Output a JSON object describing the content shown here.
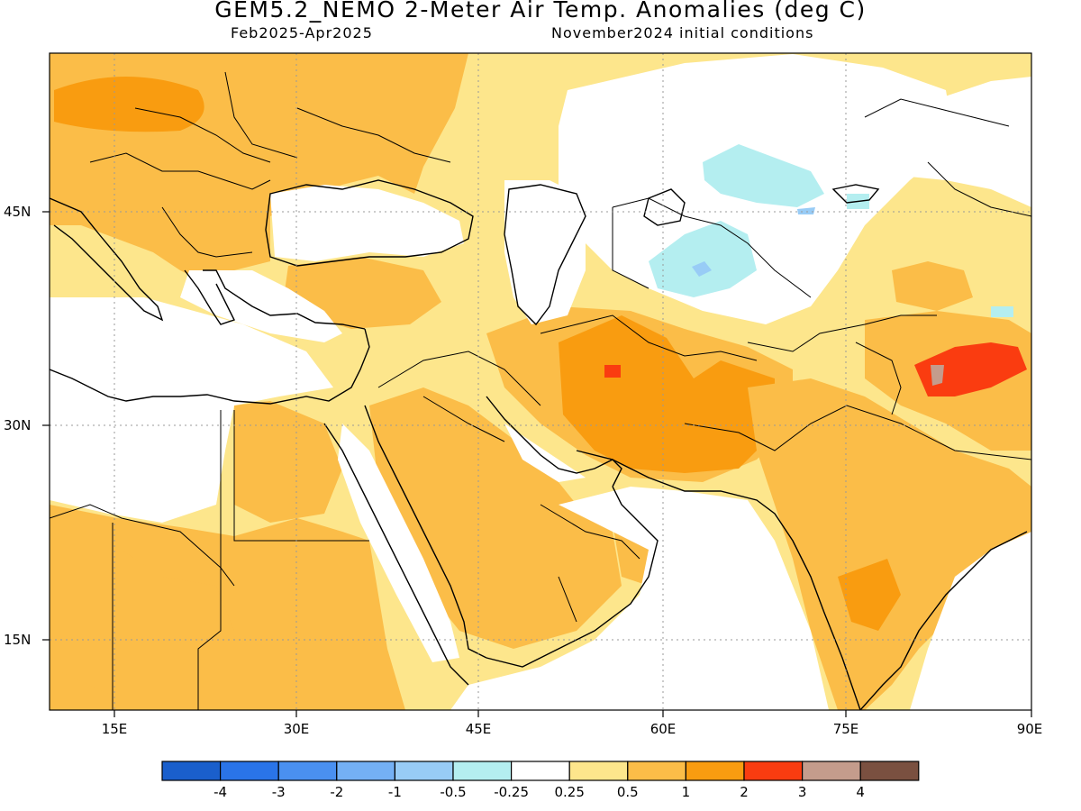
{
  "header": {
    "title": "GEM5.2_NEMO 2-Meter Air Temp. Anomalies (deg C)",
    "period": "Feb2025-Apr2025",
    "init": "November2024 initial conditions"
  },
  "axes": {
    "lat_labels": [
      "45N",
      "30N",
      "15N"
    ],
    "lon_labels": [
      "15E",
      "30E",
      "45E",
      "60E",
      "75E",
      "90E"
    ],
    "lon_range": [
      10,
      90
    ],
    "lat_range": [
      10,
      55
    ]
  },
  "legend": {
    "labels": [
      "-4",
      "-3",
      "-2",
      "-1",
      "-0.5",
      "-0.25",
      "0.25",
      "0.5",
      "1",
      "2",
      "3",
      "4"
    ],
    "colors": [
      "#1a5fcc",
      "#2a74e8",
      "#4a90f0",
      "#74b0f4",
      "#98ccf6",
      "#b4eef0",
      "#ffffff",
      "#fde68c",
      "#fbbd48",
      "#f99c10",
      "#fa3c10",
      "#c49c8c",
      "#7a5040"
    ]
  },
  "palette": {
    "white": "#ffffff",
    "light_yellow": "#fde68c",
    "orange_light": "#fbbd48",
    "orange": "#f99c10",
    "red": "#fa3c10",
    "brown": "#c49c8c",
    "cyan": "#b4eef0",
    "light_blue": "#98ccf6",
    "blue": "#74b0f4",
    "line": "#000000",
    "grid": "#999999"
  }
}
